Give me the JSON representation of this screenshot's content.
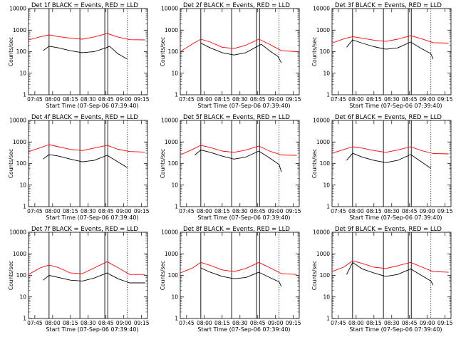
{
  "chart_data": {
    "type": "line",
    "yscale": "log",
    "ylim": [
      1,
      10000
    ],
    "xlim": [
      "07:39:40",
      "09:20"
    ],
    "ylabel": "Counts/sec",
    "xlabel": "Start Time (07-Sep-06 07:39:40)",
    "x_ticks": [
      "07:45",
      "08:00",
      "08:15",
      "08:30",
      "08:45",
      "09:00",
      "09:15"
    ],
    "y_ticks": [
      "1",
      "10",
      "100",
      "1000",
      "10000"
    ],
    "colors": {
      "events": "#000000",
      "lld": "#ff0000"
    },
    "panels": [
      {
        "title": "Det 1f BLACK = Events, RED = LLD",
        "series": [
          {
            "key": "events",
            "color": "#000000",
            "points": [
              [
                "07:52",
                110
              ],
              [
                "07:57",
                180
              ],
              [
                "08:05",
                150
              ],
              [
                "08:15",
                110
              ],
              [
                "08:25",
                90
              ],
              [
                "08:35",
                100
              ],
              [
                "08:45",
                150
              ],
              [
                "08:48",
                180
              ],
              [
                "08:55",
                80
              ],
              [
                "09:03",
                45
              ]
            ]
          },
          {
            "key": "lld",
            "color": "#ff0000",
            "points": [
              [
                "07:39:40",
                350
              ],
              [
                "07:50",
                500
              ],
              [
                "07:57",
                600
              ],
              [
                "08:05",
                500
              ],
              [
                "08:15",
                420
              ],
              [
                "08:25",
                380
              ],
              [
                "08:35",
                480
              ],
              [
                "08:46",
                700
              ],
              [
                "08:55",
                480
              ],
              [
                "09:05",
                360
              ],
              [
                "09:18",
                350
              ]
            ]
          }
        ]
      },
      {
        "title": "Det 2f BLACK = Events, RED = LLD",
        "series": [
          {
            "key": "events",
            "color": "#000000",
            "points": [
              [
                "07:57",
                250
              ],
              [
                "08:05",
                150
              ],
              [
                "08:15",
                90
              ],
              [
                "08:25",
                70
              ],
              [
                "08:35",
                90
              ],
              [
                "08:45",
                180
              ],
              [
                "08:48",
                220
              ],
              [
                "08:55",
                110
              ],
              [
                "09:02",
                60
              ],
              [
                "09:05",
                30
              ]
            ]
          },
          {
            "key": "lld",
            "color": "#ff0000",
            "points": [
              [
                "07:39:40",
                100
              ],
              [
                "07:50",
                230
              ],
              [
                "07:57",
                380
              ],
              [
                "08:05",
                280
              ],
              [
                "08:15",
                160
              ],
              [
                "08:25",
                140
              ],
              [
                "08:35",
                200
              ],
              [
                "08:46",
                380
              ],
              [
                "08:55",
                220
              ],
              [
                "09:05",
                110
              ],
              [
                "09:18",
                100
              ]
            ]
          }
        ]
      },
      {
        "title": "Det 3f BLACK = Events, RED = LLD",
        "series": [
          {
            "key": "events",
            "color": "#000000",
            "points": [
              [
                "07:52",
                160
              ],
              [
                "07:57",
                350
              ],
              [
                "08:05",
                250
              ],
              [
                "08:15",
                170
              ],
              [
                "08:25",
                130
              ],
              [
                "08:35",
                150
              ],
              [
                "08:46",
                280
              ],
              [
                "08:55",
                140
              ],
              [
                "09:03",
                80
              ],
              [
                "09:05",
                45
              ]
            ]
          },
          {
            "key": "lld",
            "color": "#ff0000",
            "points": [
              [
                "07:39:40",
                250
              ],
              [
                "07:50",
                400
              ],
              [
                "07:57",
                500
              ],
              [
                "08:05",
                420
              ],
              [
                "08:15",
                340
              ],
              [
                "08:25",
                300
              ],
              [
                "08:35",
                380
              ],
              [
                "08:46",
                550
              ],
              [
                "08:55",
                400
              ],
              [
                "09:05",
                260
              ],
              [
                "09:18",
                250
              ]
            ]
          }
        ]
      },
      {
        "title": "Det 4f BLACK = Events, RED = LLD",
        "series": [
          {
            "key": "events",
            "color": "#000000",
            "points": [
              [
                "07:52",
                160
              ],
              [
                "07:57",
                260
              ],
              [
                "08:05",
                220
              ],
              [
                "08:15",
                160
              ],
              [
                "08:25",
                120
              ],
              [
                "08:35",
                140
              ],
              [
                "08:46",
                240
              ],
              [
                "08:55",
                120
              ],
              [
                "09:03",
                65
              ]
            ]
          },
          {
            "key": "lld",
            "color": "#ff0000",
            "points": [
              [
                "07:39:40",
                350
              ],
              [
                "07:50",
                550
              ],
              [
                "07:57",
                750
              ],
              [
                "08:05",
                600
              ],
              [
                "08:15",
                450
              ],
              [
                "08:25",
                400
              ],
              [
                "08:35",
                520
              ],
              [
                "08:46",
                700
              ],
              [
                "08:55",
                460
              ],
              [
                "09:05",
                360
              ],
              [
                "09:18",
                340
              ]
            ]
          }
        ]
      },
      {
        "title": "Det 5f BLACK = Events, RED = LLD",
        "series": [
          {
            "key": "events",
            "color": "#000000",
            "points": [
              [
                "07:52",
                250
              ],
              [
                "07:57",
                420
              ],
              [
                "08:05",
                330
              ],
              [
                "08:15",
                220
              ],
              [
                "08:25",
                160
              ],
              [
                "08:35",
                200
              ],
              [
                "08:46",
                380
              ],
              [
                "08:55",
                180
              ],
              [
                "09:03",
                90
              ],
              [
                "09:05",
                40
              ]
            ]
          },
          {
            "key": "lld",
            "color": "#ff0000",
            "points": [
              [
                "07:39:40",
                250
              ],
              [
                "07:50",
                450
              ],
              [
                "07:57",
                700
              ],
              [
                "08:05",
                550
              ],
              [
                "08:15",
                380
              ],
              [
                "08:25",
                330
              ],
              [
                "08:35",
                420
              ],
              [
                "08:46",
                650
              ],
              [
                "08:55",
                380
              ],
              [
                "09:05",
                250
              ],
              [
                "09:18",
                240
              ]
            ]
          }
        ]
      },
      {
        "title": "Det 6f BLACK = Events, RED = LLD",
        "series": [
          {
            "key": "events",
            "color": "#000000",
            "points": [
              [
                "07:52",
                140
              ],
              [
                "07:57",
                300
              ],
              [
                "08:05",
                200
              ],
              [
                "08:15",
                140
              ],
              [
                "08:25",
                110
              ],
              [
                "08:35",
                140
              ],
              [
                "08:46",
                260
              ],
              [
                "08:55",
                120
              ],
              [
                "09:03",
                60
              ]
            ]
          },
          {
            "key": "lld",
            "color": "#ff0000",
            "points": [
              [
                "07:39:40",
                300
              ],
              [
                "07:50",
                450
              ],
              [
                "07:57",
                600
              ],
              [
                "08:05",
                520
              ],
              [
                "08:15",
                400
              ],
              [
                "08:25",
                330
              ],
              [
                "08:35",
                420
              ],
              [
                "08:46",
                600
              ],
              [
                "08:55",
                400
              ],
              [
                "09:05",
                290
              ],
              [
                "09:18",
                280
              ]
            ]
          }
        ]
      },
      {
        "title": "Det 7f BLACK = Events, RED = LLD",
        "series": [
          {
            "key": "events",
            "color": "#000000",
            "points": [
              [
                "07:52",
                60
              ],
              [
                "07:57",
                100
              ],
              [
                "08:05",
                80
              ],
              [
                "08:15",
                60
              ],
              [
                "08:25",
                55
              ],
              [
                "08:35",
                75
              ],
              [
                "08:46",
                130
              ],
              [
                "08:55",
                70
              ],
              [
                "09:05",
                45
              ],
              [
                "09:18",
                45
              ]
            ]
          },
          {
            "key": "lld",
            "color": "#ff0000",
            "points": [
              [
                "07:39:40",
                110
              ],
              [
                "07:50",
                230
              ],
              [
                "07:57",
                300
              ],
              [
                "08:05",
                230
              ],
              [
                "08:15",
                130
              ],
              [
                "08:25",
                120
              ],
              [
                "08:35",
                220
              ],
              [
                "08:46",
                430
              ],
              [
                "08:55",
                230
              ],
              [
                "09:05",
                110
              ],
              [
                "09:18",
                110
              ]
            ]
          }
        ]
      },
      {
        "title": "Det 8f BLACK = Events, RED = LLD",
        "series": [
          {
            "key": "events",
            "color": "#000000",
            "points": [
              [
                "07:57",
                220
              ],
              [
                "08:05",
                140
              ],
              [
                "08:15",
                90
              ],
              [
                "08:25",
                70
              ],
              [
                "08:35",
                80
              ],
              [
                "08:46",
                140
              ],
              [
                "08:55",
                80
              ],
              [
                "09:03",
                50
              ],
              [
                "09:05",
                30
              ]
            ]
          },
          {
            "key": "lld",
            "color": "#ff0000",
            "points": [
              [
                "07:39:40",
                130
              ],
              [
                "07:50",
                220
              ],
              [
                "07:57",
                400
              ],
              [
                "08:05",
                290
              ],
              [
                "08:15",
                180
              ],
              [
                "08:25",
                150
              ],
              [
                "08:35",
                210
              ],
              [
                "08:46",
                400
              ],
              [
                "08:55",
                230
              ],
              [
                "09:05",
                120
              ],
              [
                "09:18",
                110
              ]
            ]
          }
        ]
      },
      {
        "title": "Det 9f BLACK = Events, RED = LLD",
        "series": [
          {
            "key": "events",
            "color": "#000000",
            "points": [
              [
                "07:52",
                110
              ],
              [
                "07:57",
                400
              ],
              [
                "08:05",
                200
              ],
              [
                "08:15",
                130
              ],
              [
                "08:25",
                90
              ],
              [
                "08:35",
                110
              ],
              [
                "08:46",
                200
              ],
              [
                "08:55",
                100
              ],
              [
                "09:03",
                55
              ],
              [
                "09:05",
                35
              ]
            ]
          },
          {
            "key": "lld",
            "color": "#ff0000",
            "points": [
              [
                "07:39:40",
                150
              ],
              [
                "07:50",
                250
              ],
              [
                "07:57",
                480
              ],
              [
                "08:05",
                360
              ],
              [
                "08:15",
                240
              ],
              [
                "08:25",
                210
              ],
              [
                "08:35",
                280
              ],
              [
                "08:46",
                400
              ],
              [
                "08:55",
                250
              ],
              [
                "09:05",
                150
              ],
              [
                "09:18",
                140
              ]
            ]
          }
        ]
      }
    ],
    "markers_solid": [
      "07:57",
      "08:23",
      "08:44",
      "08:46:30"
    ],
    "markers_dotted": [
      "09:03"
    ]
  }
}
